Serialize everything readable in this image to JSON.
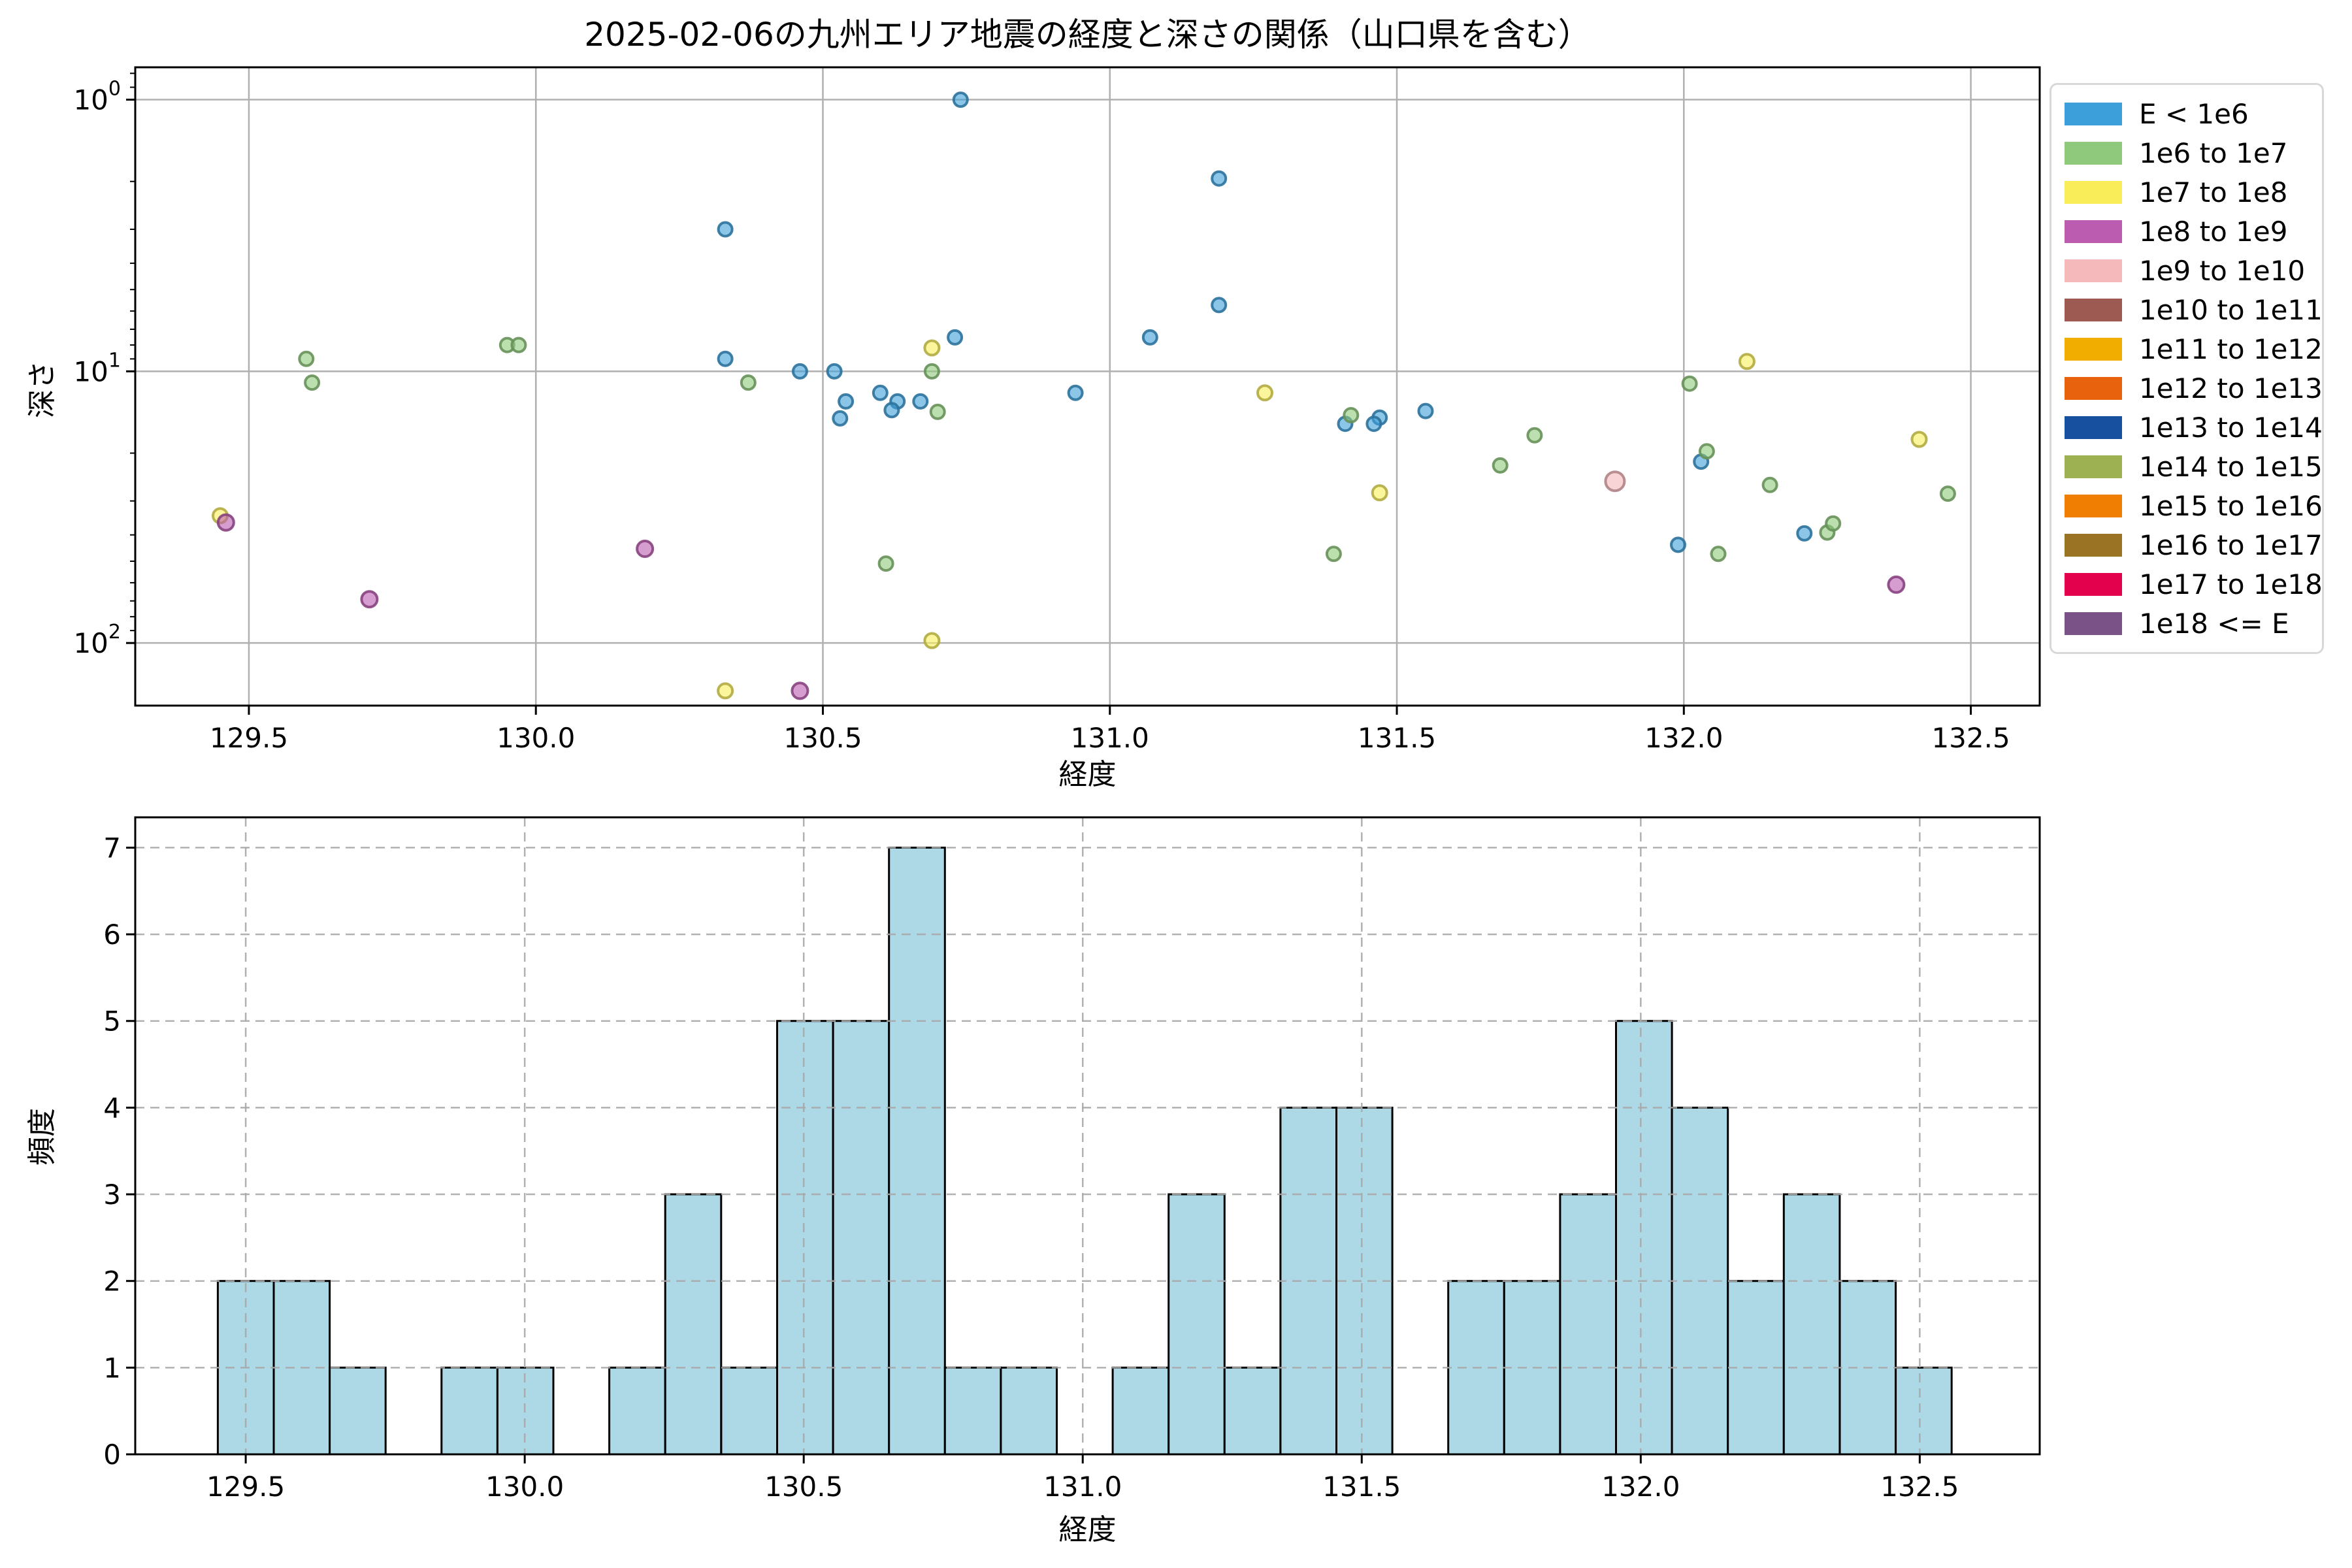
{
  "title": "2025-02-06の九州エリア地震の経度と深さの関係（山口県を含む）",
  "chart_data": [
    {
      "type": "scatter",
      "title": "2025-02-06の九州エリア地震の経度と深さの関係（山口県を含む）",
      "xlabel": "経度",
      "ylabel": "深さ",
      "x_ticks": [
        129.5,
        130.0,
        130.5,
        131.0,
        131.5,
        132.0,
        132.5
      ],
      "xlim": [
        129.302,
        132.62
      ],
      "y_scale": "log",
      "y_inverted": true,
      "ylim": [
        0.76,
        170
      ],
      "y_ticks": [
        {
          "value": 1,
          "base": "10",
          "exp": "0"
        },
        {
          "value": 10,
          "base": "10",
          "exp": "1"
        },
        {
          "value": 100,
          "base": "10",
          "exp": "2"
        }
      ],
      "grid": "solid",
      "legend_title_rows": 14,
      "series": [
        {
          "name": "E < 1e6",
          "color": "#3D9FD9",
          "marker_r": 10.5,
          "points": [
            [
              130.74,
              1.0
            ],
            [
              131.19,
              1.95
            ],
            [
              130.33,
              3.0
            ],
            [
              131.19,
              5.7
            ],
            [
              130.73,
              7.5
            ],
            [
              131.07,
              7.5
            ],
            [
              130.33,
              9.0
            ],
            [
              130.46,
              10.0
            ],
            [
              130.52,
              10.0
            ],
            [
              130.6,
              12.0
            ],
            [
              130.94,
              12.0
            ],
            [
              130.54,
              12.9
            ],
            [
              130.63,
              12.9
            ],
            [
              130.67,
              12.9
            ],
            [
              130.62,
              13.9
            ],
            [
              130.53,
              14.9
            ],
            [
              131.55,
              14.0
            ],
            [
              131.47,
              14.8
            ],
            [
              131.41,
              15.6
            ],
            [
              131.46,
              15.6
            ],
            [
              132.03,
              21.5
            ],
            [
              131.99,
              43.5
            ],
            [
              132.21,
              39.5
            ]
          ]
        },
        {
          "name": "1e6 to 1e7",
          "color": "#8FC97C",
          "marker_r": 10.5,
          "points": [
            [
              129.95,
              8.0
            ],
            [
              129.97,
              8.0
            ],
            [
              129.6,
              9.0
            ],
            [
              129.61,
              11.0
            ],
            [
              130.37,
              11.0
            ],
            [
              130.69,
              10.0
            ],
            [
              130.7,
              14.1
            ],
            [
              130.61,
              51.0
            ],
            [
              131.39,
              47.0
            ],
            [
              131.42,
              14.5
            ],
            [
              131.74,
              17.2
            ],
            [
              131.68,
              22.2
            ],
            [
              132.01,
              11.1
            ],
            [
              132.04,
              19.7
            ],
            [
              132.15,
              26.2
            ],
            [
              132.06,
              47.0
            ],
            [
              132.25,
              39.2
            ],
            [
              132.26,
              36.3
            ],
            [
              132.46,
              28.2
            ]
          ]
        },
        {
          "name": "1e7 to 1e8",
          "color": "#F9EE5A",
          "marker_r": 11,
          "points": [
            [
              129.45,
              34.0
            ],
            [
              130.69,
              8.2
            ],
            [
              131.27,
              12.0
            ],
            [
              130.69,
              98.0
            ],
            [
              130.33,
              150.0
            ],
            [
              131.47,
              28.0
            ],
            [
              132.11,
              9.2
            ],
            [
              132.41,
              17.8
            ]
          ]
        },
        {
          "name": "1e8 to 1e9",
          "color": "#BB5CB0",
          "marker_r": 12,
          "points": [
            [
              129.46,
              36.0
            ],
            [
              130.19,
              45.0
            ],
            [
              129.71,
              69.0
            ],
            [
              130.46,
              150.0
            ],
            [
              132.37,
              61.0
            ]
          ]
        },
        {
          "name": "1e9 to 1e10",
          "color": "#F5B8BB",
          "marker_r": 14.5,
          "points": [
            [
              131.88,
              25.4
            ]
          ]
        },
        {
          "name": "1e10 to 1e11",
          "color": "#9D5A52",
          "marker_r": 10.5,
          "points": []
        },
        {
          "name": "1e11 to 1e12",
          "color": "#F1AD00",
          "marker_r": 10.5,
          "points": []
        },
        {
          "name": "1e12 to 1e13",
          "color": "#E8610D",
          "marker_r": 10.5,
          "points": []
        },
        {
          "name": "1e13 to 1e14",
          "color": "#17509E",
          "marker_r": 10.5,
          "points": []
        },
        {
          "name": "1e14 to 1e15",
          "color": "#9DB052",
          "marker_r": 10.5,
          "points": []
        },
        {
          "name": "1e15 to 1e16",
          "color": "#F07E02",
          "marker_r": 10.5,
          "points": []
        },
        {
          "name": "1e16 to 1e17",
          "color": "#9A7324",
          "marker_r": 10.5,
          "points": []
        },
        {
          "name": "1e17 to 1e18",
          "color": "#E3014E",
          "marker_r": 10.5,
          "points": []
        },
        {
          "name": "1e18 <= E",
          "color": "#7B5288",
          "marker_r": 10.5,
          "points": []
        }
      ]
    },
    {
      "type": "bar",
      "xlabel": "経度",
      "ylabel": "頻度",
      "x_ticks": [
        129.5,
        130.0,
        130.5,
        131.0,
        131.5,
        132.0,
        132.5
      ],
      "y_ticks": [
        0,
        1,
        2,
        3,
        4,
        5,
        6,
        7
      ],
      "xlim": [
        129.302,
        132.715
      ],
      "ylim": [
        0,
        7.35
      ],
      "grid": "dashed",
      "bin_start": 129.45,
      "bin_width": 0.10023,
      "counts": [
        2,
        2,
        1,
        0,
        1,
        1,
        0,
        1,
        3,
        1,
        5,
        5,
        7,
        1,
        1,
        0,
        1,
        3,
        1,
        4,
        4,
        0,
        2,
        2,
        3,
        5,
        4,
        2,
        3,
        2,
        1
      ],
      "bar_color": "#ADD8E6",
      "bar_edge": "#000000"
    }
  ]
}
